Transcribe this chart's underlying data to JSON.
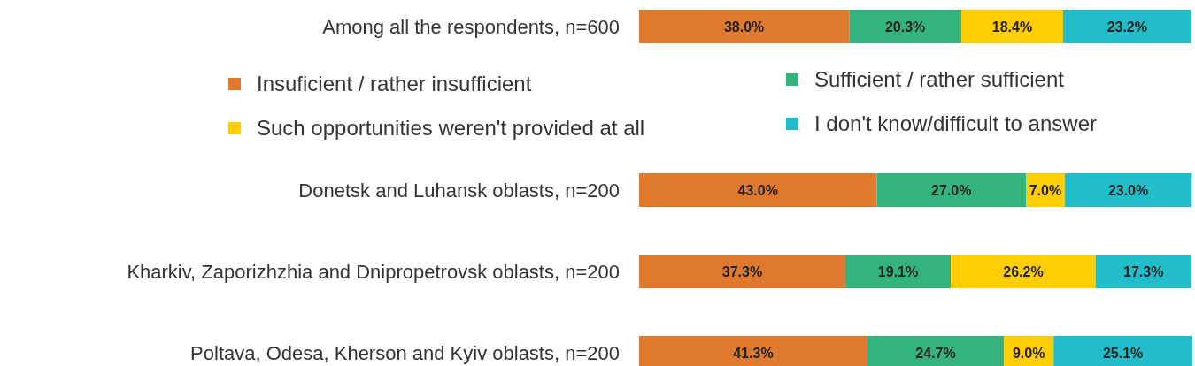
{
  "chart_data": {
    "type": "bar",
    "orientation": "horizontal",
    "stacked": true,
    "legend": "top",
    "categories": [
      "Among all the respondents, n=600",
      "Donetsk and Luhansk oblasts, n=200",
      "Kharkiv, Zaporizhzhia and Dnipropetrovsk oblasts, n=200",
      "Poltava, Odesa, Kherson and Kyiv oblasts, n=200"
    ],
    "series": [
      {
        "name": "Insuficient / rather insufficient",
        "color": "#df792d",
        "values": [
          38.0,
          43.0,
          37.3,
          41.3
        ],
        "value_labels": [
          "38.0%",
          "43.0%",
          "37.3%",
          "41.3%"
        ]
      },
      {
        "name": "Sufficient / rather sufficient",
        "color": "#33b47f",
        "values": [
          20.3,
          27.0,
          19.1,
          24.7
        ],
        "value_labels": [
          "20.3%",
          "27.0%",
          "19.1%",
          "24.7%"
        ]
      },
      {
        "name": "Such opportunities weren't provided at all",
        "color": "#fecd02",
        "values": [
          18.4,
          7.0,
          26.2,
          9.0
        ],
        "value_labels": [
          "18.4%",
          "7.0%",
          "26.2%",
          "9.0%"
        ]
      },
      {
        "name": "I don't know/difficult to answer",
        "color": "#22bdca",
        "values": [
          23.2,
          23.0,
          17.3,
          25.1
        ],
        "value_labels": [
          "23.2%",
          "23.0%",
          "17.3%",
          "25.1%"
        ]
      }
    ]
  }
}
